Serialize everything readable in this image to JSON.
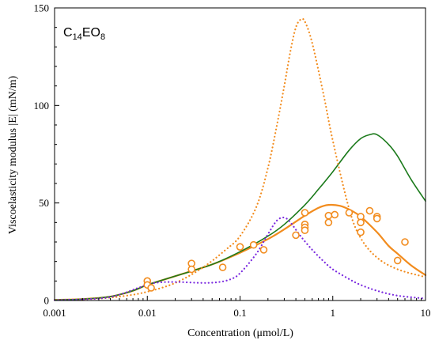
{
  "chart_data": {
    "type": "scatter",
    "title": {
      "parts": [
        {
          "text": "C",
          "sub": false
        },
        {
          "text": "14",
          "sub": true
        },
        {
          "text": "EO",
          "sub": false
        },
        {
          "text": "8",
          "sub": true
        }
      ]
    },
    "xlabel": "Concentration (μmol/L)",
    "ylabel": "Viscoelasticity modulus |E| (mN/m)",
    "x_scale": "log",
    "xlim": [
      0.001,
      10
    ],
    "ylim": [
      0,
      150
    ],
    "x_ticks": [
      0.001,
      0.01,
      0.1,
      1,
      10
    ],
    "x_tick_labels": [
      "0.001",
      "0.01",
      "0.1",
      "1",
      "10"
    ],
    "y_ticks": [
      0,
      50,
      100,
      150
    ],
    "y_tick_labels": [
      "0",
      "50",
      "100",
      "150"
    ],
    "grid": false,
    "legend": "none",
    "scatter": {
      "color": "#F28C1E",
      "points": [
        [
          0.01,
          10
        ],
        [
          0.01,
          8
        ],
        [
          0.011,
          6.5
        ],
        [
          0.03,
          19
        ],
        [
          0.03,
          16
        ],
        [
          0.065,
          17
        ],
        [
          0.1,
          27.5
        ],
        [
          0.14,
          28.5
        ],
        [
          0.18,
          26
        ],
        [
          0.4,
          33.5
        ],
        [
          0.5,
          45
        ],
        [
          0.5,
          39
        ],
        [
          0.5,
          37.5
        ],
        [
          0.5,
          36
        ],
        [
          0.9,
          43.5
        ],
        [
          0.9,
          40
        ],
        [
          1.05,
          44
        ],
        [
          1.5,
          45
        ],
        [
          2,
          43
        ],
        [
          2,
          40
        ],
        [
          2,
          35
        ],
        [
          2.5,
          46
        ],
        [
          3,
          43
        ],
        [
          3,
          42
        ],
        [
          5,
          20.5
        ],
        [
          6,
          30
        ]
      ]
    },
    "series": [
      {
        "style": "solid",
        "color": "#F28C1E",
        "width": 2.2,
        "points": [
          [
            0.001,
            0.3
          ],
          [
            0.002,
            0.7
          ],
          [
            0.004,
            2
          ],
          [
            0.007,
            5
          ],
          [
            0.01,
            8
          ],
          [
            0.02,
            12.5
          ],
          [
            0.05,
            18.5
          ],
          [
            0.1,
            24.5
          ],
          [
            0.2,
            31.5
          ],
          [
            0.3,
            36.5
          ],
          [
            0.5,
            43.5
          ],
          [
            0.7,
            47.5
          ],
          [
            0.9,
            49
          ],
          [
            1.2,
            48.5
          ],
          [
            1.6,
            46
          ],
          [
            2,
            43
          ],
          [
            3,
            35
          ],
          [
            4,
            28
          ],
          [
            5,
            24
          ],
          [
            7,
            18
          ],
          [
            10,
            13
          ]
        ]
      },
      {
        "style": "solid",
        "color": "#1B7A1B",
        "width": 1.6,
        "points": [
          [
            0.001,
            0.3
          ],
          [
            0.002,
            0.7
          ],
          [
            0.004,
            2
          ],
          [
            0.007,
            5
          ],
          [
            0.01,
            8
          ],
          [
            0.02,
            12.5
          ],
          [
            0.05,
            18.5
          ],
          [
            0.1,
            25
          ],
          [
            0.2,
            33
          ],
          [
            0.3,
            39
          ],
          [
            0.5,
            49
          ],
          [
            0.7,
            57
          ],
          [
            1,
            66
          ],
          [
            1.5,
            77
          ],
          [
            2,
            83
          ],
          [
            2.5,
            85
          ],
          [
            3,
            85
          ],
          [
            4,
            80
          ],
          [
            5,
            74
          ],
          [
            7,
            62
          ],
          [
            10,
            51
          ]
        ]
      },
      {
        "style": "dotted",
        "color": "#F28C1E",
        "width": 2.2,
        "points": [
          [
            0.001,
            0.2
          ],
          [
            0.003,
            1
          ],
          [
            0.006,
            2.5
          ],
          [
            0.01,
            4.5
          ],
          [
            0.02,
            9
          ],
          [
            0.04,
            17
          ],
          [
            0.07,
            26
          ],
          [
            0.1,
            33
          ],
          [
            0.15,
            48
          ],
          [
            0.2,
            68
          ],
          [
            0.25,
            90
          ],
          [
            0.3,
            110
          ],
          [
            0.35,
            128
          ],
          [
            0.4,
            140
          ],
          [
            0.45,
            144
          ],
          [
            0.5,
            143
          ],
          [
            0.6,
            132
          ],
          [
            0.8,
            105
          ],
          [
            1,
            82
          ],
          [
            1.5,
            47
          ],
          [
            2,
            32
          ],
          [
            3,
            22
          ],
          [
            5,
            16
          ],
          [
            10,
            12
          ]
        ]
      },
      {
        "style": "dotted",
        "color": "#7B2BE0",
        "width": 2.2,
        "points": [
          [
            0.001,
            0.2
          ],
          [
            0.003,
            1
          ],
          [
            0.005,
            3
          ],
          [
            0.008,
            6.5
          ],
          [
            0.012,
            9
          ],
          [
            0.02,
            9.5
          ],
          [
            0.04,
            9
          ],
          [
            0.06,
            9.5
          ],
          [
            0.08,
            11
          ],
          [
            0.1,
            14
          ],
          [
            0.15,
            24
          ],
          [
            0.2,
            34
          ],
          [
            0.25,
            41
          ],
          [
            0.3,
            42.5
          ],
          [
            0.35,
            40
          ],
          [
            0.45,
            33
          ],
          [
            0.6,
            26
          ],
          [
            0.8,
            20
          ],
          [
            1,
            16
          ],
          [
            1.5,
            11
          ],
          [
            2,
            8
          ],
          [
            3,
            5
          ],
          [
            5,
            2.5
          ],
          [
            10,
            1
          ]
        ]
      }
    ]
  }
}
